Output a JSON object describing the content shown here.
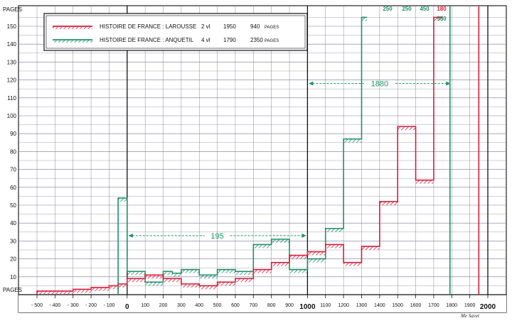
{
  "chart_data": {
    "type": "line",
    "y_unit_label": "PAGES",
    "x_unit_label": "PAGES",
    "xlim": [
      -500,
      2000
    ],
    "ylim": [
      0,
      155
    ],
    "x_ticks": [
      -500,
      -400,
      -300,
      -200,
      -100,
      0,
      100,
      200,
      300,
      400,
      500,
      600,
      700,
      800,
      900,
      1000,
      1100,
      1200,
      1300,
      1400,
      1500,
      1600,
      1700,
      1800,
      1900,
      2000
    ],
    "x_tick_labels": [
      "- 500",
      "- 400",
      "- 300",
      "- 200",
      "- 100",
      "0",
      "100",
      "200",
      "300",
      "400",
      "500",
      "600",
      "700",
      "800",
      "900",
      "1000",
      "1100",
      "1200",
      "1300",
      "1400",
      "1500",
      "1600",
      "1700",
      "1800",
      "1900",
      "2000"
    ],
    "y_ticks": [
      10,
      20,
      30,
      40,
      50,
      60,
      70,
      80,
      90,
      100,
      110,
      120,
      130,
      140,
      150
    ],
    "grid": true,
    "legend_position": "top-left",
    "series": [
      {
        "name": "HISTOIRE DE FRANCE : LAROUSSE 2 vl 1950 940 PAGES",
        "legend_title": "HISTOIRE DE FRANCE : LAROUSSE",
        "legend_vol": "2 vl",
        "legend_year": "1950",
        "legend_pages": "940",
        "color": "#d81e3c",
        "end_year": 1950,
        "steps": [
          {
            "x0": -500,
            "x1": -300,
            "y": 2
          },
          {
            "x0": -300,
            "x1": -200,
            "y": 3
          },
          {
            "x0": -200,
            "x1": -100,
            "y": 4
          },
          {
            "x0": -100,
            "x1": -50,
            "y": 5
          },
          {
            "x0": -50,
            "x1": 0,
            "y": 6
          },
          {
            "x0": 0,
            "x1": 100,
            "y": 9
          },
          {
            "x0": 100,
            "x1": 200,
            "y": 11
          },
          {
            "x0": 200,
            "x1": 300,
            "y": 9
          },
          {
            "x0": 300,
            "x1": 400,
            "y": 6
          },
          {
            "x0": 400,
            "x1": 500,
            "y": 5
          },
          {
            "x0": 500,
            "x1": 600,
            "y": 7
          },
          {
            "x0": 600,
            "x1": 700,
            "y": 9
          },
          {
            "x0": 700,
            "x1": 800,
            "y": 14
          },
          {
            "x0": 800,
            "x1": 900,
            "y": 18
          },
          {
            "x0": 900,
            "x1": 1000,
            "y": 22
          },
          {
            "x0": 1000,
            "x1": 1100,
            "y": 24
          },
          {
            "x0": 1100,
            "x1": 1200,
            "y": 28
          },
          {
            "x0": 1200,
            "x1": 1300,
            "y": 18
          },
          {
            "x0": 1300,
            "x1": 1400,
            "y": 27
          },
          {
            "x0": 1400,
            "x1": 1500,
            "y": 52
          },
          {
            "x0": 1500,
            "x1": 1600,
            "y": 94
          },
          {
            "x0": 1600,
            "x1": 1700,
            "y": 64
          },
          {
            "x0": 1700,
            "x1": 1750,
            "y": 155
          }
        ]
      },
      {
        "name": "HISTOIRE DE FRANCE : ANQUETIL 4 vl 1790 2350 PAGES",
        "legend_title": "HISTOIRE DE FRANCE : ANQUETIL",
        "legend_vol": "4 vl",
        "legend_year": "1790",
        "legend_pages": "2350",
        "color": "#1f9068",
        "end_year": 1790,
        "steps": [
          {
            "x0": -50,
            "x1": 0,
            "y": 54
          },
          {
            "x0": 0,
            "x1": 100,
            "y": 13
          },
          {
            "x0": 100,
            "x1": 200,
            "y": 7
          },
          {
            "x0": 200,
            "x1": 250,
            "y": 13
          },
          {
            "x0": 250,
            "x1": 300,
            "y": 12
          },
          {
            "x0": 300,
            "x1": 400,
            "y": 14
          },
          {
            "x0": 400,
            "x1": 500,
            "y": 11
          },
          {
            "x0": 500,
            "x1": 600,
            "y": 14
          },
          {
            "x0": 600,
            "x1": 700,
            "y": 13
          },
          {
            "x0": 700,
            "x1": 800,
            "y": 28
          },
          {
            "x0": 800,
            "x1": 900,
            "y": 31
          },
          {
            "x0": 900,
            "x1": 1000,
            "y": 14
          },
          {
            "x0": 1000,
            "x1": 1100,
            "y": 20
          },
          {
            "x0": 1100,
            "x1": 1200,
            "y": 37
          },
          {
            "x0": 1200,
            "x1": 1300,
            "y": 87
          },
          {
            "x0": 1300,
            "x1": 1330,
            "y": 155
          }
        ]
      }
    ],
    "off_scale_values": [
      {
        "text": "250",
        "series": 1
      },
      {
        "text": "250",
        "series": 1
      },
      {
        "text": "450",
        "series": 1
      },
      {
        "text": "180",
        "series": 0
      },
      {
        "text": "550",
        "series": 1
      }
    ],
    "annotations": [
      {
        "text": "195",
        "x_from": 0,
        "x_to": 1000,
        "y": 33,
        "series": 1
      },
      {
        "text": "1880",
        "x_from": 1000,
        "x_to": 1800,
        "y": 118,
        "series": 1
      }
    ],
    "signature": "Me Savet"
  }
}
